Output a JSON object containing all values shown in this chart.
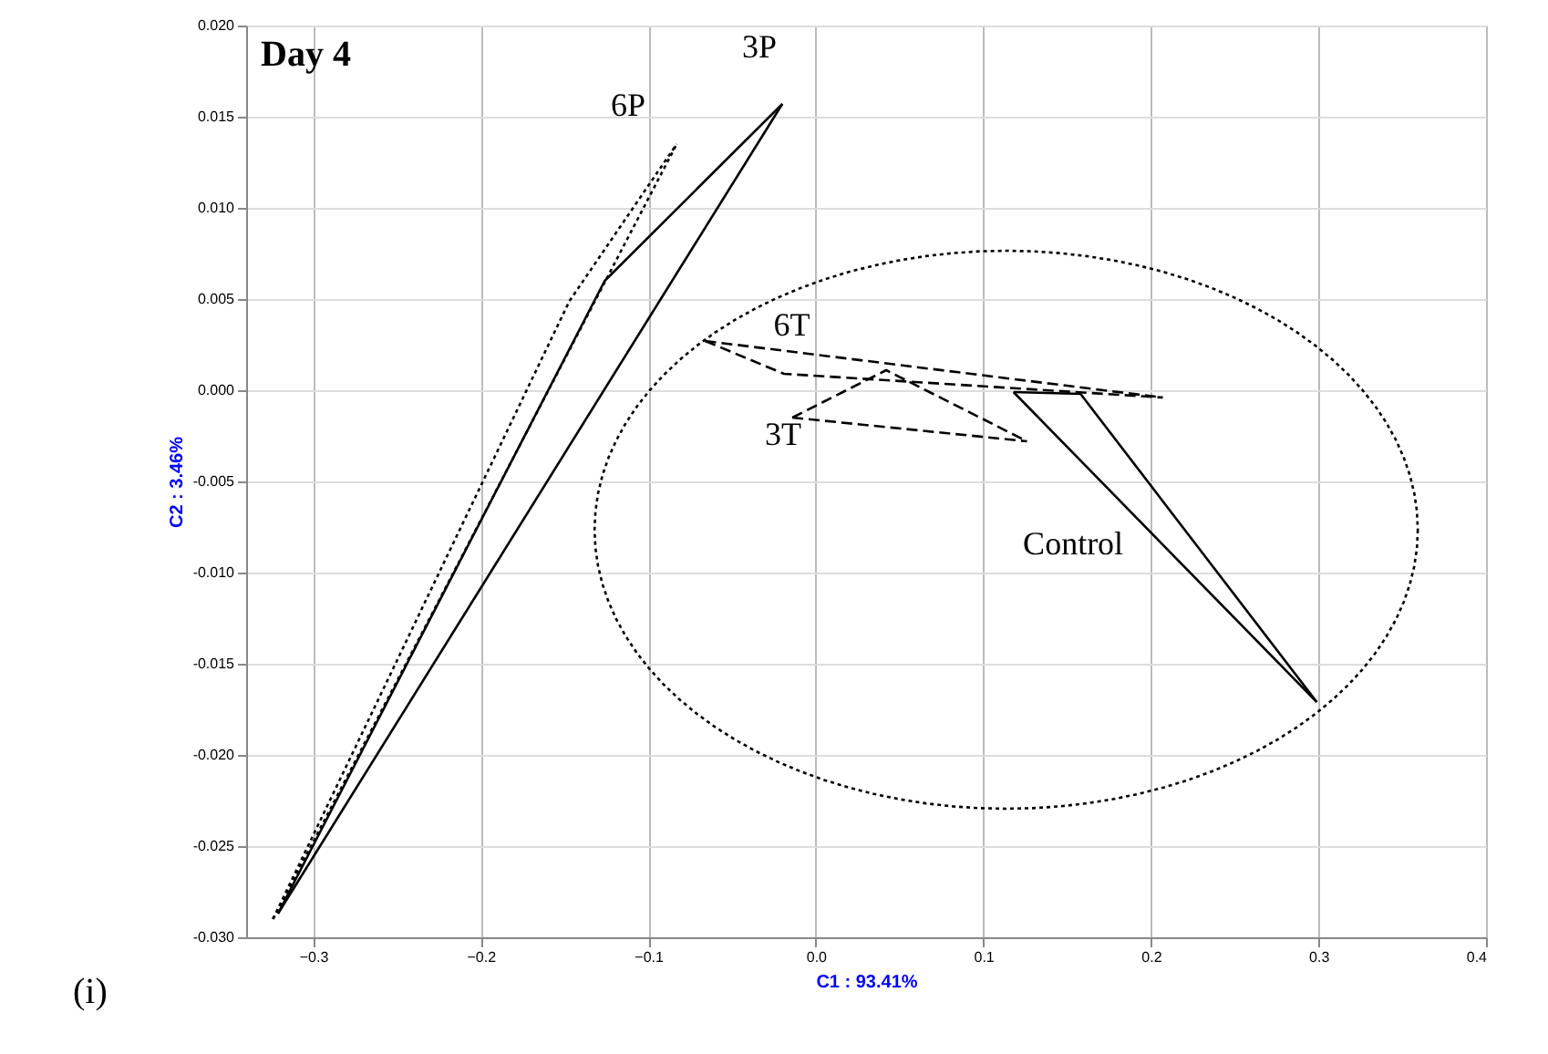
{
  "chart_data": {
    "type": "line",
    "title": "Day 4",
    "xlabel": "C1 : 93.41%",
    "ylabel": "C2 : 3.46%",
    "xlim": [
      -0.34,
      0.4
    ],
    "xticks": [
      -0.3,
      -0.2,
      -0.1,
      {
        "value": 0,
        "label": "0.0"
      },
      0.1,
      0.2,
      0.3,
      0.4
    ],
    "ylim": [
      -0.03,
      0.02
    ],
    "yticks": [
      {
        "value": -0.03,
        "label": "-0.030"
      },
      {
        "value": -0.025,
        "label": "-0.025"
      },
      {
        "value": -0.02,
        "label": "-0.020"
      },
      {
        "value": -0.015,
        "label": "-0.015"
      },
      {
        "value": -0.01,
        "label": "-0.010"
      },
      {
        "value": -0.005,
        "label": "-0.005"
      },
      {
        "value": 0,
        "label": "0.000"
      },
      {
        "value": 0.005,
        "label": "0.005"
      },
      {
        "value": 0.01,
        "label": "0.010"
      },
      {
        "value": 0.015,
        "label": "0.015"
      },
      {
        "value": 0.02,
        "label": "0.020"
      }
    ],
    "grid": true,
    "marker": "none",
    "series": [
      {
        "color": "#000000",
        "line_style": "dotted",
        "x": [
          -0.324,
          -0.147,
          -0.083
        ],
        "values": [
          -0.029,
          0.0049,
          0.0135
        ]
      },
      {
        "color": "#000000",
        "line_style": "dotted",
        "x": [
          -0.324,
          -0.083
        ],
        "values": [
          -0.029,
          0.0135
        ]
      },
      {
        "color": "#000000",
        "line_style": "solid",
        "x": [
          -0.321,
          -0.126,
          -0.02
        ],
        "values": [
          -0.0287,
          0.006,
          0.0157
        ]
      },
      {
        "color": "#000000",
        "line_style": "solid",
        "x": [
          -0.321,
          -0.02
        ],
        "values": [
          -0.0287,
          0.0157
        ]
      },
      {
        "color": "#000000",
        "line_style": "dashed",
        "x": [
          -0.066,
          -0.019,
          0.207
        ],
        "values": [
          0.0027,
          0.0009,
          -0.0004
        ]
      },
      {
        "color": "#000000",
        "line_style": "dashed",
        "x": [
          -0.066,
          0.207
        ],
        "values": [
          0.0027,
          -0.0004
        ]
      },
      {
        "color": "#000000",
        "line_style": "dashed",
        "x": [
          -0.014,
          0.042,
          0.126
        ],
        "values": [
          -0.0015,
          0.0011,
          -0.0028
        ]
      },
      {
        "color": "#000000",
        "line_style": "dashed",
        "x": [
          -0.014,
          0.126
        ],
        "values": [
          -0.0015,
          -0.0028
        ]
      },
      {
        "color": "#000000",
        "line_style": "solid",
        "x": [
          0.118,
          0.158,
          0.299
        ],
        "values": [
          -0.0001,
          -0.0002,
          -0.0171
        ]
      },
      {
        "color": "#000000",
        "line_style": "solid",
        "x": [
          0.118,
          0.299
        ],
        "values": [
          -0.0001,
          -0.0171
        ]
      }
    ],
    "annotations": [
      "6P",
      "3P",
      "6T",
      "3T",
      "Control",
      "(i)"
    ]
  }
}
